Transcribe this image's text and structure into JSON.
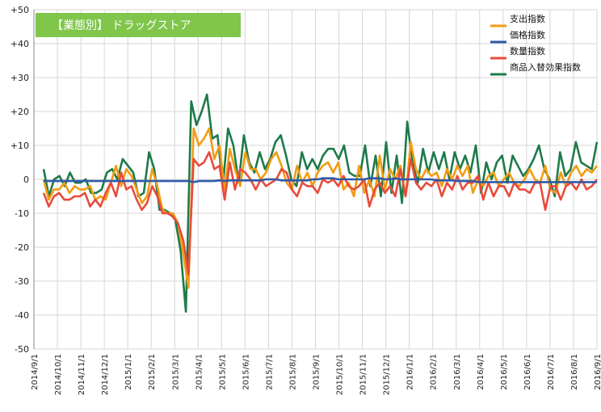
{
  "chart_data": {
    "type": "line",
    "title": "【業態別】 ドラッグストア",
    "title_bg": "#7fc64b",
    "ylim": [
      -50,
      50
    ],
    "y_ticks": [
      50,
      40,
      30,
      20,
      10,
      0,
      -10,
      -20,
      -30,
      -40,
      -50
    ],
    "y_tick_labels": [
      "+50",
      "+40",
      "+30",
      "+20",
      "+10",
      "0",
      "-10",
      "-20",
      "-30",
      "-40",
      "-50"
    ],
    "x_tick_labels": [
      "2014/9/1",
      "2014/10/1",
      "2014/11/1",
      "2014/12/1",
      "2015/1/1",
      "2015/2/1",
      "2015/3/1",
      "2015/4/1",
      "2015/5/1",
      "2015/6/1",
      "2015/7/1",
      "2015/8/1",
      "2015/9/1",
      "2015/10/1",
      "2015/11/1",
      "2015/12/1",
      "2016/1/1",
      "2016/2/1",
      "2016/3/1",
      "2016/4/1",
      "2016/5/1",
      "2016/6/1",
      "2016/7/1",
      "2016/8/1",
      "2016/9/1"
    ],
    "grid": true,
    "legend_position": "top-right",
    "series": [
      {
        "name": "支出指数",
        "color": "#f39c12",
        "values": [
          0,
          -6,
          -3,
          -3,
          -1,
          -4,
          -2,
          -3,
          -3,
          -2,
          -6,
          -5,
          -6,
          -1,
          4,
          -2,
          3,
          1,
          -3,
          -7,
          -5,
          3,
          -2,
          -9,
          -10,
          -10,
          -13,
          -22,
          -32,
          15,
          10,
          12,
          15,
          6,
          10,
          -3,
          9,
          3,
          -2,
          8,
          3,
          3,
          0,
          2,
          6,
          8,
          4,
          -1,
          -3,
          4,
          -1,
          2,
          -2,
          2,
          4,
          5,
          2,
          5,
          -3,
          -1,
          -5,
          4,
          -4,
          0,
          -5,
          7,
          -3,
          3,
          0,
          4,
          -5,
          11,
          3,
          0,
          3,
          1,
          2,
          -2,
          3,
          0,
          4,
          1,
          4,
          -4,
          0,
          -2,
          1,
          2,
          -2,
          0,
          2,
          -1,
          -2,
          0,
          3,
          0,
          -1,
          4,
          -3,
          -4,
          2,
          -2,
          2,
          4,
          1,
          3,
          2,
          4
        ],
        "values_note": ""
      },
      {
        "name": "価格指数",
        "color": "#2e5aa8",
        "values": [
          -0.5,
          -0.5,
          -0.5,
          -0.5,
          -0.5,
          -0.5,
          -0.5,
          -0.5,
          -0.5,
          -0.5,
          -0.5,
          -0.5,
          -0.5,
          -0.5,
          -0.5,
          -0.5,
          -0.5,
          -0.5,
          -0.5,
          -0.5,
          -0.5,
          -0.5,
          -0.5,
          -0.5,
          -0.5,
          -0.5,
          -0.5,
          -0.5,
          -0.5,
          -0.8,
          -0.5,
          -0.5,
          -0.5,
          -0.5,
          -0.3,
          -0.5,
          -0.3,
          -0.3,
          -0.3,
          -0.3,
          -0.3,
          -0.3,
          -0.3,
          0,
          0,
          0,
          -0.3,
          -0.3,
          -0.3,
          -0.3,
          -0.3,
          -0.3,
          0,
          0,
          0.3,
          0.3,
          0.3,
          0,
          0,
          0,
          0,
          0,
          0,
          0.3,
          0.3,
          0.3,
          0,
          0,
          0.3,
          0,
          0,
          0,
          0,
          0,
          0,
          0,
          -0.3,
          -0.3,
          -0.3,
          -0.3,
          -0.5,
          -0.5,
          -0.5,
          -0.5,
          -0.8,
          -0.8,
          -0.8,
          -0.8,
          -0.8,
          -0.8,
          -0.8,
          -0.8,
          -0.8,
          -0.8,
          -0.8,
          -0.8,
          -0.8,
          -0.8,
          -0.8,
          -0.8,
          -0.8,
          -0.8,
          -0.8,
          -0.8,
          -0.8,
          -0.8,
          -0.8,
          -0.8
        ]
      },
      {
        "name": "数量指数",
        "color": "#e74c3c",
        "values": [
          -4,
          -8,
          -5,
          -4,
          -6,
          -6,
          -5,
          -5,
          -4,
          -8,
          -6,
          -8,
          -4,
          -1,
          -5,
          2,
          -3,
          -2,
          -6,
          -9,
          -7,
          -2,
          -5,
          -10,
          -10,
          -11,
          -13,
          -18,
          -28,
          6,
          4,
          5,
          8,
          3,
          4,
          -6,
          5,
          -3,
          3,
          2,
          0,
          -3,
          0,
          -2,
          -1,
          0,
          3,
          2,
          -3,
          -5,
          -1,
          -2,
          -2,
          -4,
          0,
          -1,
          0,
          -2,
          1,
          -2,
          -3,
          -2,
          0,
          -8,
          -3,
          -1,
          -4,
          -2,
          -5,
          3,
          -5,
          6,
          -1,
          -3,
          -1,
          -2,
          0,
          -5,
          -1,
          -3,
          1,
          -3,
          -1,
          -1,
          1,
          -6,
          -1,
          -5,
          -2,
          -2,
          -5,
          -1,
          -3,
          -3,
          -4,
          -1,
          -1,
          -9,
          -2,
          -2,
          -6,
          -2,
          -1,
          -3,
          0,
          -3,
          -2,
          0
        ]
      },
      {
        "name": "商品入替効果指数",
        "color": "#1e7a4a",
        "values": [
          3,
          -5,
          0,
          1,
          -2,
          2,
          -1,
          -1,
          0,
          -4,
          -4,
          -3,
          2,
          3,
          0,
          6,
          4,
          2,
          -5,
          -4,
          8,
          3,
          -9,
          -9,
          -10,
          -12,
          -21,
          -39,
          23,
          16,
          20,
          25,
          12,
          13,
          -2,
          15,
          10,
          -1,
          13,
          5,
          2,
          8,
          3,
          6,
          11,
          13,
          7,
          0,
          -2,
          8,
          3,
          6,
          3,
          7,
          9,
          9,
          6,
          10,
          2,
          1,
          1,
          10,
          -2,
          7,
          -5,
          11,
          -4,
          7,
          -7,
          17,
          5,
          -1,
          9,
          2,
          8,
          3,
          8,
          0,
          8,
          3,
          7,
          2,
          10,
          -4,
          5,
          0,
          5,
          7,
          -1,
          7,
          4,
          1,
          3,
          6,
          10,
          3,
          0,
          -5,
          8,
          1,
          3,
          11,
          5,
          4,
          3,
          11
        ]
      }
    ]
  }
}
